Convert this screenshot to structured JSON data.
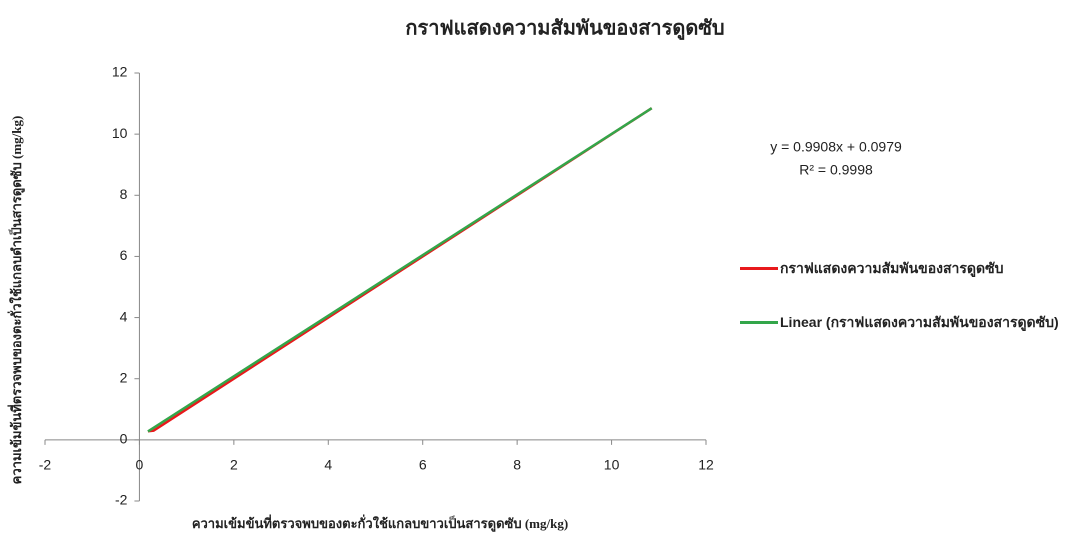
{
  "chart_data": {
    "type": "scatter-line",
    "title": "กราฟแสดงความสัมพันของสารดูดซับ",
    "x_label": "ความเข้มข้นที่ตรวจพบของตะกั่วใช้แกลบขาวเป็นสารดูดซับ  (mg/kg)",
    "y_label": "ความเข้มข้นที่ตรวจพบของตะกั่วใช้แกลบดำเป็นสารดูดซับ (mg/kg)",
    "xlim": [
      -2,
      12
    ],
    "xticks": [
      -2,
      0,
      2,
      4,
      6,
      8,
      10,
      12
    ],
    "ylim": [
      -2,
      12
    ],
    "yticks": [
      -2,
      0,
      2,
      4,
      6,
      8,
      10,
      12
    ],
    "series": [
      {
        "name": "กราฟแสดงความสัมพันของสารดูดซับ",
        "color": "#e8191c",
        "x": [
          0.18,
          0.3,
          10.85
        ],
        "values": [
          0.28,
          0.3,
          10.85
        ]
      },
      {
        "name": "Linear (กราฟแสดงความสัมพันของสารดูดซับ)",
        "color": "#33a64a",
        "x": [
          0.18,
          10.85
        ],
        "values": [
          0.276,
          10.848
        ]
      }
    ],
    "annotations": [
      "y = 0.9908x + 0.0979",
      "R² = 0.9998"
    ]
  }
}
